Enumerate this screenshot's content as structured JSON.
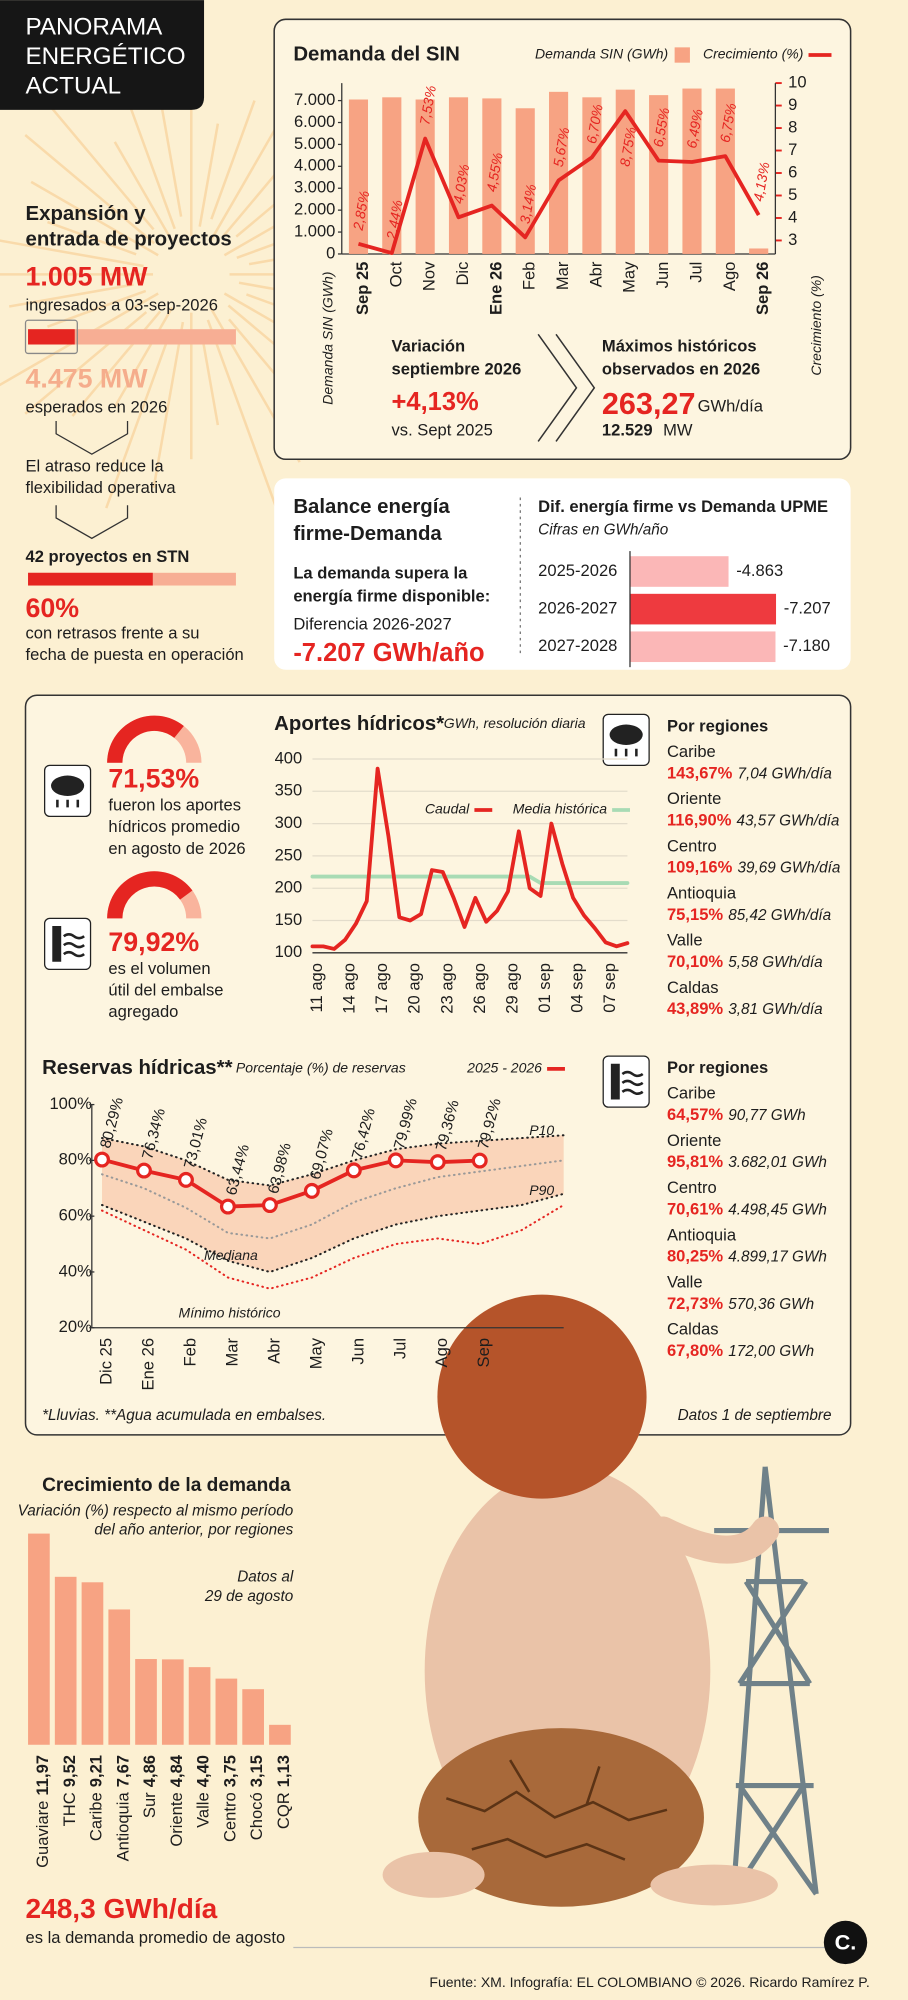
{
  "header": {
    "title": [
      "PANORAMA",
      "ENERGÉTICO",
      "ACTUAL"
    ]
  },
  "expansion": {
    "title": [
      "Expansión y",
      "entrada de proyectos"
    ],
    "installed": {
      "value": 1005,
      "label": "1.005 MW"
    },
    "installed_note": "ingresados a 03-sep-2026",
    "expected": {
      "value": 4475,
      "label": "4.475 MW"
    },
    "expected_note": "esperados en 2026",
    "delay_note": [
      "El atraso reduce la",
      "flexibilidad operativa"
    ],
    "projects": "42 proyectos en STN",
    "delayed_share": {
      "value": 60,
      "label": "60%",
      "range": [
        0,
        100
      ]
    },
    "delayed_note": [
      "con retrasos frente a su",
      "fecha de puesta en operación"
    ]
  },
  "demand_summary": {
    "variation_title": [
      "Variación",
      "septiembre 2026"
    ],
    "variation": "+4,13%",
    "variation_note": "vs. Sept 2025",
    "max_title": [
      "Máximos históricos",
      "observados en 2026"
    ],
    "max_energy": "263,27",
    "max_energy_unit": "GWh/día",
    "max_power": "12.529",
    "max_power_unit": "MW"
  },
  "balance": {
    "title": [
      "Balance energía",
      "firme-Demanda"
    ],
    "text": [
      "La demanda supera la",
      "energía firme disponible:"
    ],
    "diff_label": "Diferencia 2026-2027",
    "diff_value": "-7.207 GWh/año"
  },
  "hydro": {
    "inflow_note": [
      "fueron los aportes",
      "hídricos promedio",
      "en agosto de 2026"
    ],
    "storage_note": [
      "es el volumen",
      "útil del embalse",
      "agregado"
    ],
    "inflow_regions": {
      "title": "Por regiones",
      "items": [
        {
          "name": "Caribe",
          "share": "143,67%",
          "amount": "7,04 GWh/día"
        },
        {
          "name": "Oriente",
          "share": "116,90%",
          "amount": "43,57 GWh/día"
        },
        {
          "name": "Centro",
          "share": "109,16%",
          "amount": "39,69 GWh/día"
        },
        {
          "name": "Antioquia",
          "share": "75,15%",
          "amount": "85,42 GWh/día"
        },
        {
          "name": "Valle",
          "share": "70,10%",
          "amount": "5,58 GWh/día"
        },
        {
          "name": "Caldas",
          "share": "43,89%",
          "amount": "3,81 GWh/día"
        }
      ]
    },
    "reserve_regions": {
      "title": "Por regiones",
      "items": [
        {
          "name": "Caribe",
          "share": "64,57%",
          "amount": "90,77 GWh"
        },
        {
          "name": "Oriente",
          "share": "95,81%",
          "amount": "3.682,01 GWh"
        },
        {
          "name": "Centro",
          "share": "70,61%",
          "amount": "4.498,45 GWh"
        },
        {
          "name": "Antioquia",
          "share": "80,25%",
          "amount": "4.899,17 GWh"
        },
        {
          "name": "Valle",
          "share": "72,73%",
          "amount": "570,36 GWh"
        },
        {
          "name": "Caldas",
          "share": "67,80%",
          "amount": "172,00 GWh"
        }
      ]
    },
    "footnote": "*Lluvias. **Agua acumulada en embalses.",
    "date_note": "Datos 1 de septiembre"
  },
  "demand_growth": {
    "note": [
      "Datos al",
      "29 de agosto"
    ],
    "avg_demand": "248,3 GWh/día",
    "avg_demand_note": "es la demanda promedio de agosto"
  },
  "footer": {
    "source": "Fuente: XM. Infografía: EL COLOMBIANO © 2026. Ricardo Ramírez P.",
    "logo": "C."
  },
  "chart_data": [
    {
      "type": "combo",
      "title": "Demanda del SIN",
      "categories": [
        "Sep 25",
        "Oct",
        "Nov",
        "Dic",
        "Ene 26",
        "Feb",
        "Mar",
        "Abr",
        "May",
        "Jun",
        "Jul",
        "Ago",
        "Sep 26"
      ],
      "series": [
        {
          "name": "Demanda SIN (GWh)",
          "color": "#f7a383",
          "values": [
            7050,
            7150,
            7050,
            7150,
            7100,
            6650,
            7400,
            7150,
            7500,
            7250,
            7550,
            7550,
            250
          ]
        },
        {
          "name": "Crecimiento (%)",
          "color": "#e52521",
          "axis": "y2",
          "values": [
            2.85,
            2.44,
            7.53,
            4.03,
            4.55,
            3.14,
            5.67,
            6.7,
            8.75,
            6.55,
            6.49,
            6.75,
            4.13
          ],
          "value_labels": [
            "2,85%",
            "2,44%",
            "7,53%",
            "4,03%",
            "4,55%",
            "3,14%",
            "5,67%",
            "6,70%",
            "8,75%",
            "6,55%",
            "6,49%",
            "6,75%",
            "4,13%"
          ]
        }
      ],
      "ylabel": "Demanda SIN (GWh)",
      "y2label": "Crecimiento (%)",
      "ylim": [
        0,
        7800
      ],
      "yticks": [
        0,
        {
          "value": 1000,
          "label": "1.000"
        },
        {
          "value": 2000,
          "label": "2.000"
        },
        {
          "value": 3000,
          "label": "3.000"
        },
        {
          "value": 4000,
          "label": "4.000"
        },
        {
          "value": 5000,
          "label": "5.000"
        },
        {
          "value": 6000,
          "label": "6.000"
        },
        {
          "value": 7000,
          "label": "7.000"
        }
      ],
      "y2lim": [
        2.4,
        10
      ],
      "y2ticks": [
        3,
        4,
        5,
        6,
        7,
        8,
        9,
        10
      ]
    },
    {
      "type": "hbar",
      "title": "Dif. energía firme vs Demanda UPME",
      "subtitle": "Cifras en GWh/año",
      "categories": [
        "2025-2026",
        "2026-2027",
        "2027-2028"
      ],
      "values": [
        -4863,
        -7207,
        -7180
      ],
      "value_labels": [
        "-4.863",
        "-7.207",
        "-7.180"
      ],
      "colors": [
        "#fbb7b7",
        "#ee3a3f",
        "#fbb7b7"
      ],
      "xlim": [
        0,
        -7300
      ]
    },
    {
      "type": "gauge",
      "values": [
        71.53
      ],
      "value_labels": [
        "71,53%"
      ],
      "ylim": [
        0,
        100
      ],
      "color": "#e52521",
      "track_color": "#f9b49d"
    },
    {
      "type": "gauge",
      "values": [
        79.92
      ],
      "value_labels": [
        "79,92%"
      ],
      "ylim": [
        0,
        100
      ],
      "color": "#e52521",
      "track_color": "#f9b49d"
    },
    {
      "type": "line",
      "title": "Aportes hídricos*",
      "subtitle": "GWh, resolución diaria",
      "categories": [
        "11 ago",
        null,
        null,
        "14 ago",
        null,
        null,
        "17 ago",
        null,
        null,
        "20 ago",
        null,
        null,
        "23 ago",
        null,
        null,
        "26 ago",
        null,
        null,
        "29 ago",
        null,
        null,
        "01 sep",
        null,
        null,
        "04 sep",
        null,
        null,
        "07 sep",
        null,
        null
      ],
      "series": [
        {
          "name": "Caudal",
          "color": "#e52521",
          "values": [
            110,
            110,
            106,
            120,
            145,
            180,
            385,
            280,
            155,
            150,
            160,
            228,
            225,
            185,
            140,
            185,
            148,
            165,
            195,
            288,
            200,
            188,
            300,
            238,
            185,
            158,
            138,
            116,
            110,
            115
          ]
        },
        {
          "name": "Media histórica",
          "color": "#a8dbb4",
          "values": [
            218,
            218,
            218,
            218,
            218,
            218,
            218,
            218,
            218,
            218,
            218,
            218,
            218,
            218,
            218,
            218,
            218,
            218,
            218,
            218,
            218,
            208,
            208,
            208,
            208,
            208,
            208,
            208,
            208,
            208
          ]
        }
      ],
      "ylim": [
        100,
        400
      ],
      "yticks": [
        100,
        150,
        200,
        250,
        300,
        350,
        400
      ],
      "grid": true
    },
    {
      "type": "line",
      "title": "Reservas hídricas**",
      "subtitle": "Porcentaje (%) de reservas",
      "categories": [
        "Dic 25",
        "Ene 26",
        "Feb",
        "Mar",
        "Abr",
        "May",
        "Jun",
        "Jul",
        "Ago",
        "Sep",
        null,
        null
      ],
      "series": [
        {
          "name": "2025 - 2026",
          "color": "#e52521",
          "line_style": "solid",
          "markers": true,
          "values": [
            80.29,
            76.34,
            73.01,
            63.44,
            63.98,
            69.07,
            76.42,
            79.99,
            79.36,
            79.92,
            null,
            null
          ],
          "value_labels": [
            "80,29%",
            "76,34%",
            "73,01%",
            "63,44%",
            "63,98%",
            "69,07%",
            "76,42%",
            "79,99%",
            "79,36%",
            "79,92%",
            null,
            null
          ]
        },
        {
          "name": "P10",
          "color": "#222222",
          "line_style": "dotted",
          "values": [
            88,
            85,
            80,
            73,
            71,
            75,
            80,
            84,
            86,
            87,
            88,
            89
          ]
        },
        {
          "name": "P90",
          "color": "#222222",
          "line_style": "dotted",
          "values": [
            64,
            58,
            52,
            44,
            40,
            45,
            52,
            57,
            60,
            62,
            64,
            68
          ]
        },
        {
          "name": "Mediana",
          "color": "#999999",
          "line_style": "dotted",
          "values": [
            75,
            70,
            63,
            54,
            52,
            57,
            65,
            70,
            74,
            76,
            78,
            80
          ]
        },
        {
          "name": "Mínimo histórico",
          "color": "#e52521",
          "line_style": "dotted",
          "values": [
            62,
            55,
            48,
            38,
            34,
            38,
            45,
            50,
            52,
            50,
            55,
            64
          ]
        }
      ],
      "band_color": "#f9cdb0",
      "ylim": [
        20,
        100
      ],
      "yticks": [
        {
          "value": 20,
          "label": "20%"
        },
        {
          "value": 40,
          "label": "40%"
        },
        {
          "value": 60,
          "label": "60%"
        },
        {
          "value": 80,
          "label": "80%"
        },
        {
          "value": 100,
          "label": "100%"
        }
      ]
    },
    {
      "type": "bar",
      "title": "Crecimiento de la demanda",
      "subtitle": [
        "Variación (%) respecto al mismo período",
        "del año anterior, por regiones"
      ],
      "categories": [
        "Guaviare",
        "THC",
        "Caribe",
        "Antioquia",
        "Sur",
        "Oriente",
        "Valle",
        "Centro",
        "Chocó",
        "CQR"
      ],
      "values": [
        11.97,
        9.52,
        9.21,
        7.67,
        4.86,
        4.84,
        4.4,
        3.75,
        3.15,
        1.13
      ],
      "value_labels": [
        "11,97",
        "9,52",
        "9,21",
        "7,67",
        "4,86",
        "4,84",
        "4,40",
        "3,75",
        "3,15",
        "1,13"
      ],
      "color": "#f7a383",
      "ylim": [
        0,
        12
      ]
    }
  ]
}
